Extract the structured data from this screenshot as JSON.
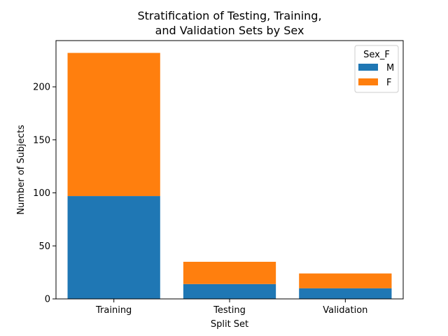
{
  "chart_data": {
    "type": "bar",
    "stacked": true,
    "title_lines": [
      "Stratification of Testing, Training,",
      "and Validation Sets by Sex"
    ],
    "xlabel": "Split Set",
    "ylabel": "Number of Subjects",
    "categories": [
      "Training",
      "Testing",
      "Validation"
    ],
    "series": [
      {
        "name": "M",
        "values": [
          97,
          14,
          10
        ],
        "color": "#1f77b4"
      },
      {
        "name": "F",
        "values": [
          135,
          21,
          14
        ],
        "color": "#ff7f0e"
      }
    ],
    "ylim": [
      0,
      243.6
    ],
    "yticks": [
      0,
      50,
      100,
      150,
      200
    ],
    "legend": {
      "title": "Sex_F",
      "placement": "top-right"
    },
    "grid": false
  }
}
